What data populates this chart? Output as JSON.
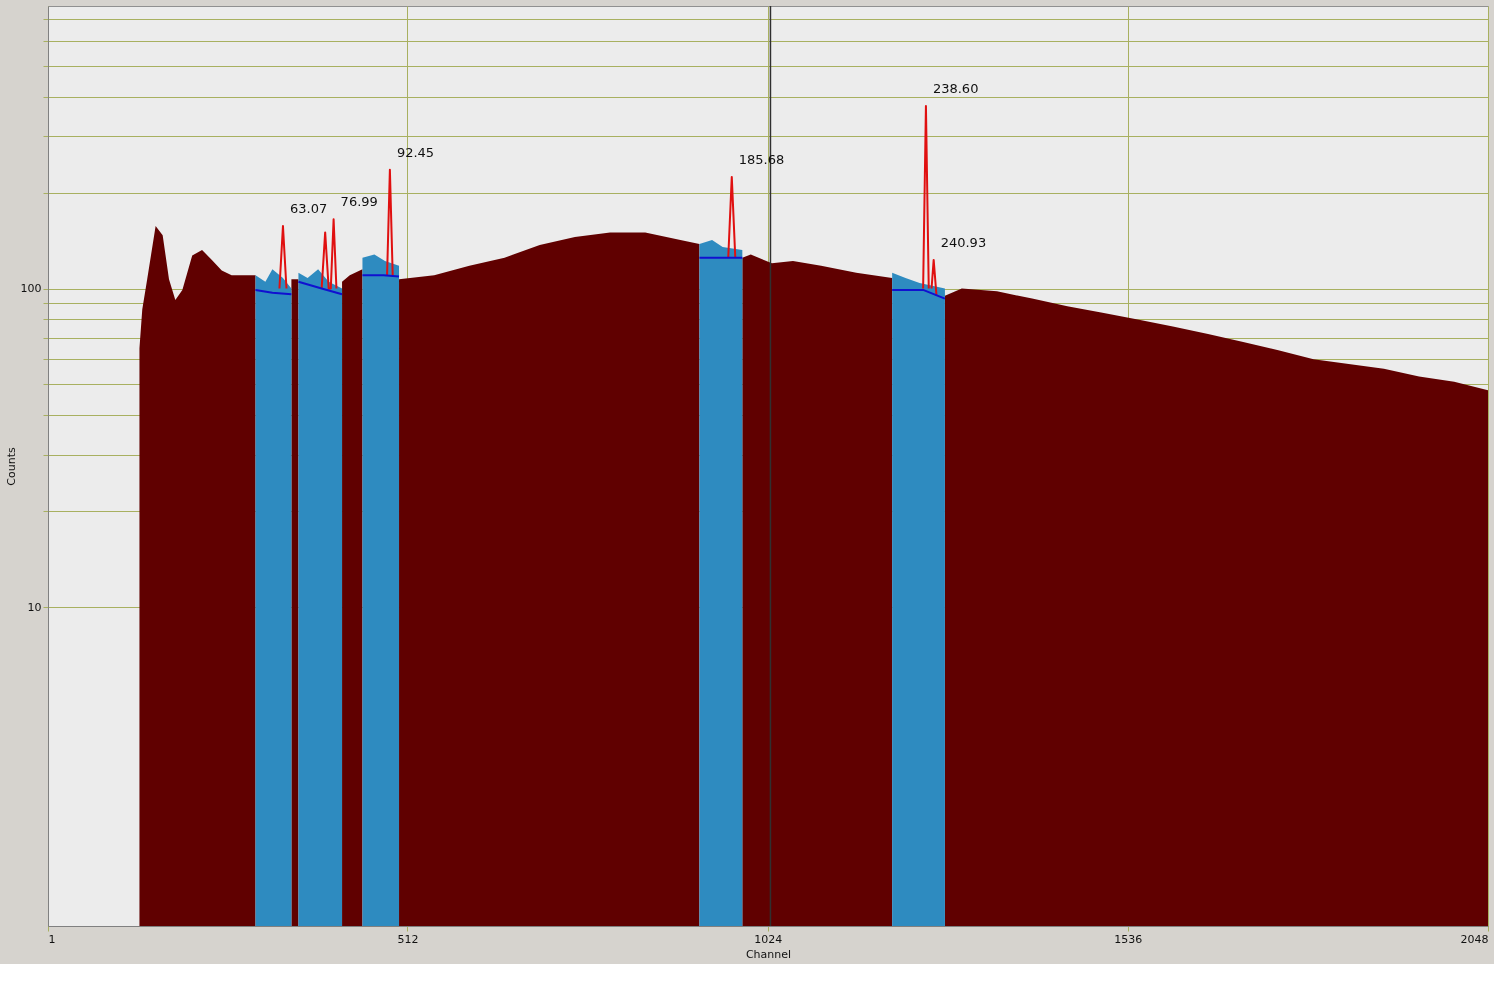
{
  "chart_data": {
    "type": "area",
    "xlabel": "Channel",
    "ylabel": "Counts",
    "log": "y",
    "xlim": [
      1,
      2048
    ],
    "xticks": [
      1,
      512,
      1024,
      1536,
      2048
    ],
    "ylim": [
      1,
      770
    ],
    "yticks": [
      10,
      {
        "value": 20,
        "label": null
      },
      {
        "value": 30,
        "label": null
      },
      {
        "value": 40,
        "label": null
      },
      {
        "value": 50,
        "label": null
      },
      {
        "value": 60,
        "label": null
      },
      {
        "value": 70,
        "label": null
      },
      {
        "value": 80,
        "label": null
      },
      {
        "value": 90,
        "label": null
      },
      100,
      {
        "value": 200,
        "label": null
      },
      {
        "value": 300,
        "label": null
      },
      {
        "value": 400,
        "label": null
      },
      {
        "value": 500,
        "label": null
      },
      {
        "value": 600,
        "label": null
      },
      {
        "value": 700,
        "label": null
      }
    ],
    "grid": true,
    "series": [
      {
        "color": "#600000",
        "x": [
          131,
          135,
          142,
          154,
          164,
          173,
          182,
          192,
          206,
          220,
          234,
          248,
          262,
          277,
          291,
          296,
          320,
          347,
          352,
          357,
          390,
          419,
          430,
          448,
          470,
          500,
          550,
          600,
          650,
          700,
          750,
          800,
          850,
          900,
          927,
          950,
          988,
          1000,
          1030,
          1060,
          1100,
          1150,
          1201,
          1240,
          1276,
          1300,
          1350,
          1400,
          1450,
          1500,
          1550,
          1600,
          1650,
          1700,
          1750,
          1800,
          1850,
          1900,
          1950,
          2000,
          2048
        ],
        "values": [
          65,
          86,
          107,
          157,
          147,
          107,
          92,
          99,
          127,
          132,
          123,
          114,
          110,
          110,
          110,
          110,
          null,
          107,
          107,
          107,
          null,
          105,
          110,
          115,
          null,
          107,
          110,
          118,
          125,
          137,
          145,
          150,
          150,
          142,
          138,
          null,
          125,
          128,
          120,
          122,
          118,
          112,
          108,
          null,
          95,
          100,
          98,
          93,
          88,
          84,
          80,
          76,
          72,
          68,
          64,
          60,
          58,
          56,
          53,
          51,
          48
        ]
      },
      {
        "color": "#2e8bc0",
        "x": [
          296,
          310,
          320,
          335,
          347,
          352,
          357,
          370,
          385,
          400,
          419,
          430,
          448,
          465,
          480,
          500,
          700,
          927,
          945,
          960,
          988,
          1100,
          1201,
          1220,
          1240,
          1276
        ],
        "values": [
          110,
          105,
          115,
          108,
          100,
          null,
          112,
          108,
          115,
          105,
          100,
          null,
          125,
          128,
          122,
          118,
          null,
          138,
          142,
          135,
          132,
          null,
          112,
          108,
          104,
          100
        ]
      },
      {
        "type": "line",
        "color": "#e01010",
        "x": [
          330,
          335,
          340,
          360,
          390,
          395,
          400,
          403,
          407,
          411,
          450,
          483,
          487,
          491,
          700,
          968,
          973,
          978,
          1100,
          1245,
          1249,
          1253,
          1255,
          1257,
          1260,
          1264
        ],
        "values": [
          100,
          157,
          100,
          null,
          100,
          150,
          100,
          100,
          165,
          100,
          null,
          110,
          236,
          110,
          null,
          125,
          224,
          125,
          null,
          100,
          374,
          100,
          null,
          100,
          123,
          95
        ]
      },
      {
        "type": "line",
        "color": "#1010d0",
        "x": [
          296,
          320,
          347,
          352,
          357,
          390,
          419,
          430,
          448,
          478,
          500,
          700,
          927,
          988,
          1100,
          1201,
          1245,
          1276
        ],
        "values": [
          99,
          97,
          96,
          null,
          105,
          100,
          96,
          null,
          110,
          110,
          109,
          null,
          125,
          125,
          null,
          99,
          99,
          93
        ]
      }
    ],
    "ref_lines": [
      {
        "axis": "x",
        "value": 1028,
        "color": "#303030"
      }
    ],
    "annotations": [
      {
        "text": "63.07",
        "x": 335,
        "y": 157
      },
      {
        "text": "76.99",
        "x": 407,
        "y": 165
      },
      {
        "text": "92.45",
        "x": 487,
        "y": 236
      },
      {
        "text": "185.68",
        "x": 973,
        "y": 224
      },
      {
        "text": "238.60",
        "x": 1249,
        "y": 374
      },
      {
        "text": "240.93",
        "x": 1260,
        "y": 123
      }
    ]
  }
}
